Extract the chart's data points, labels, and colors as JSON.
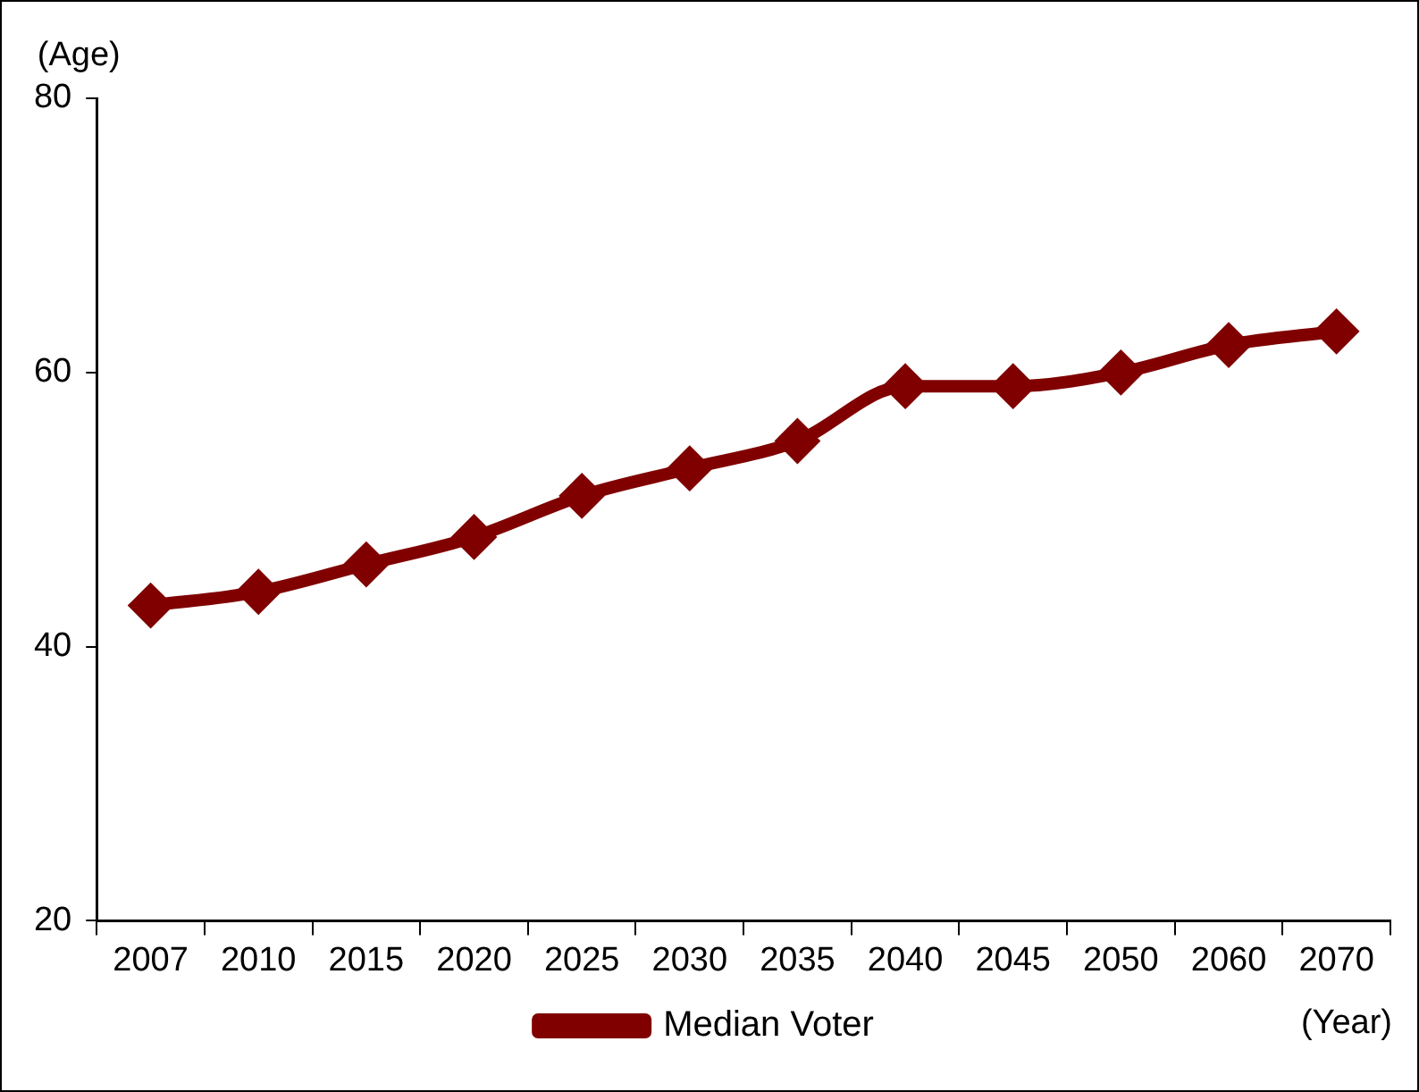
{
  "chart_data": {
    "type": "line",
    "xlabel": "(Year)",
    "ylabel": "(Age)",
    "categories": [
      "2007",
      "2010",
      "2015",
      "2020",
      "2025",
      "2030",
      "2035",
      "2040",
      "2045",
      "2050",
      "2060",
      "2070"
    ],
    "series": [
      {
        "name": "Median Voter",
        "color": "#800000",
        "values": [
          43,
          44,
          46,
          48,
          51,
          53,
          55,
          59,
          59,
          60,
          62,
          63
        ]
      }
    ],
    "ylim": [
      20,
      80
    ],
    "yticks": [
      20,
      40,
      60,
      80
    ],
    "grid": false,
    "legend": "bottom",
    "marker": "diamond",
    "line_style": "solid"
  }
}
